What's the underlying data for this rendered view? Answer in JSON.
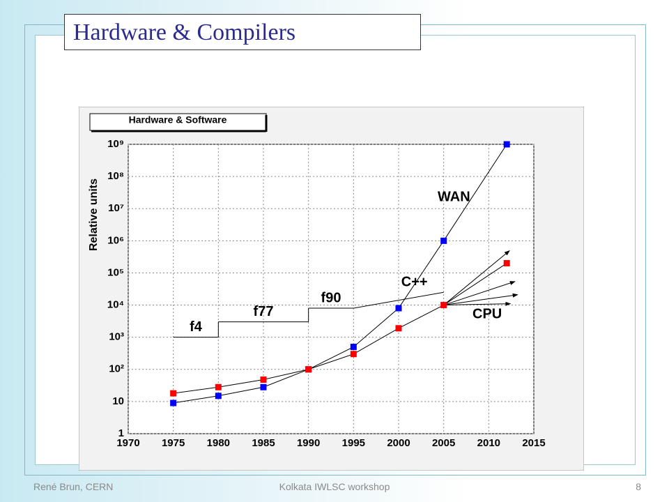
{
  "slide": {
    "title": "Hardware & Compilers",
    "footer_left": "René Brun, CERN",
    "footer_center": "Kolkata IWLSC workshop",
    "page_number": "8"
  },
  "chart_data": {
    "type": "line",
    "title": "Hardware & Software",
    "y_label": "Relative units",
    "y_scale": "log",
    "grid": true,
    "xlim": [
      1970,
      2015
    ],
    "xticks": [
      1970,
      1975,
      1980,
      1985,
      1990,
      1995,
      2000,
      2005,
      2010,
      2015
    ],
    "ylim": [
      1,
      1000000000
    ],
    "yticks": [
      1,
      10,
      {
        "value": 100,
        "label": "10²"
      },
      {
        "value": 1000,
        "label": "10³"
      },
      {
        "value": 10000,
        "label": "10⁴"
      },
      {
        "value": 100000,
        "label": "10⁵"
      },
      {
        "value": 1000000,
        "label": "10⁶"
      },
      {
        "value": 10000000,
        "label": "10⁷"
      },
      {
        "value": 100000000,
        "label": "10⁸"
      },
      {
        "value": 1000000000,
        "label": "10⁹"
      }
    ],
    "series": [
      {
        "name": "WAN",
        "color": "#0000ff",
        "x": [
          1975,
          1980,
          1985,
          1990,
          1995,
          2000,
          2005,
          2012
        ],
        "values": [
          9,
          15,
          28,
          100,
          500,
          8000,
          1000000,
          1000000000
        ]
      },
      {
        "name": "CPU",
        "color": "#ff0000",
        "x": [
          1975,
          1980,
          1985,
          1990,
          1995,
          2000,
          2005,
          2012
        ],
        "values": [
          18,
          28,
          48,
          100,
          300,
          1900,
          10000,
          200000
        ]
      }
    ],
    "compilers": [
      {
        "label": "f4",
        "x": [
          1975,
          1980
        ],
        "values": [
          1000,
          1000
        ]
      },
      {
        "label": "f77",
        "x": [
          1980,
          1990
        ],
        "values": [
          3000,
          3000
        ]
      },
      {
        "label": "f90",
        "x": [
          1990,
          1995
        ],
        "values": [
          8000,
          8000
        ]
      },
      {
        "label": "C++",
        "x": [
          1995,
          2005
        ],
        "values": [
          8000,
          25000
        ]
      }
    ],
    "projections": {
      "x0": 2005,
      "y0": 10000,
      "x": [
        2012.3,
        2012.9,
        2013.2,
        2012.4
      ],
      "values": [
        490000,
        54000,
        21000,
        11000
      ]
    }
  }
}
